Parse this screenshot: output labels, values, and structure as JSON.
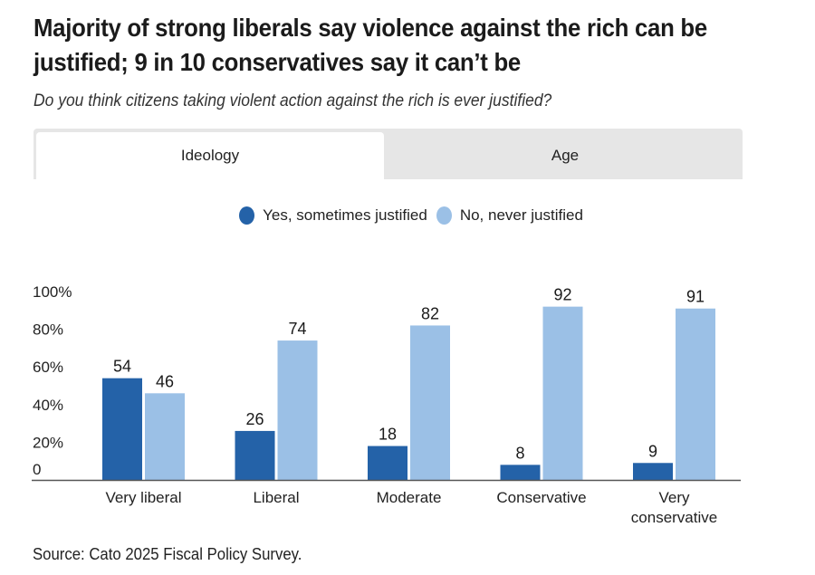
{
  "title": "Majority of strong liberals say violence against the rich can be justified; 9 in 10 conservatives say it can’t be",
  "subtitle": "Do you think citizens taking violent action against the rich is ever justified?",
  "tabs": [
    {
      "label": "Ideology",
      "active": true
    },
    {
      "label": "Age",
      "active": false
    }
  ],
  "source": "Source: Cato 2025 Fiscal Policy Survey.",
  "colors": {
    "yes": "#2462a8",
    "no": "#9bc0e6",
    "axis": "#555555",
    "tab_bg": "#e6e6e6"
  },
  "chart_data": {
    "type": "bar",
    "title": "Majority of strong liberals say violence against the rich can be justified; 9 in 10 conservatives say it can’t be",
    "subtitle": "Do you think citizens taking violent action against the rich is ever justified?",
    "categories": [
      "Very liberal",
      "Liberal",
      "Moderate",
      "Conservative",
      "Very conservative"
    ],
    "category_lines": [
      [
        "Very liberal"
      ],
      [
        "Liberal"
      ],
      [
        "Moderate"
      ],
      [
        "Conservative"
      ],
      [
        "Very",
        "conservative"
      ]
    ],
    "series": [
      {
        "name": "Yes, sometimes justified",
        "color": "#2462a8",
        "values": [
          54,
          26,
          18,
          8,
          9
        ]
      },
      {
        "name": "No, never justified",
        "color": "#9bc0e6",
        "values": [
          46,
          74,
          82,
          92,
          91
        ]
      }
    ],
    "xlabel": "",
    "ylabel": "",
    "ylim": [
      0,
      100
    ],
    "yticks": [
      0,
      20,
      40,
      60,
      80,
      100
    ],
    "ytick_labels": [
      "0",
      "20%",
      "40%",
      "60%",
      "80%",
      "100%"
    ],
    "grid": false,
    "legend": "top-center",
    "data_labels": true
  }
}
